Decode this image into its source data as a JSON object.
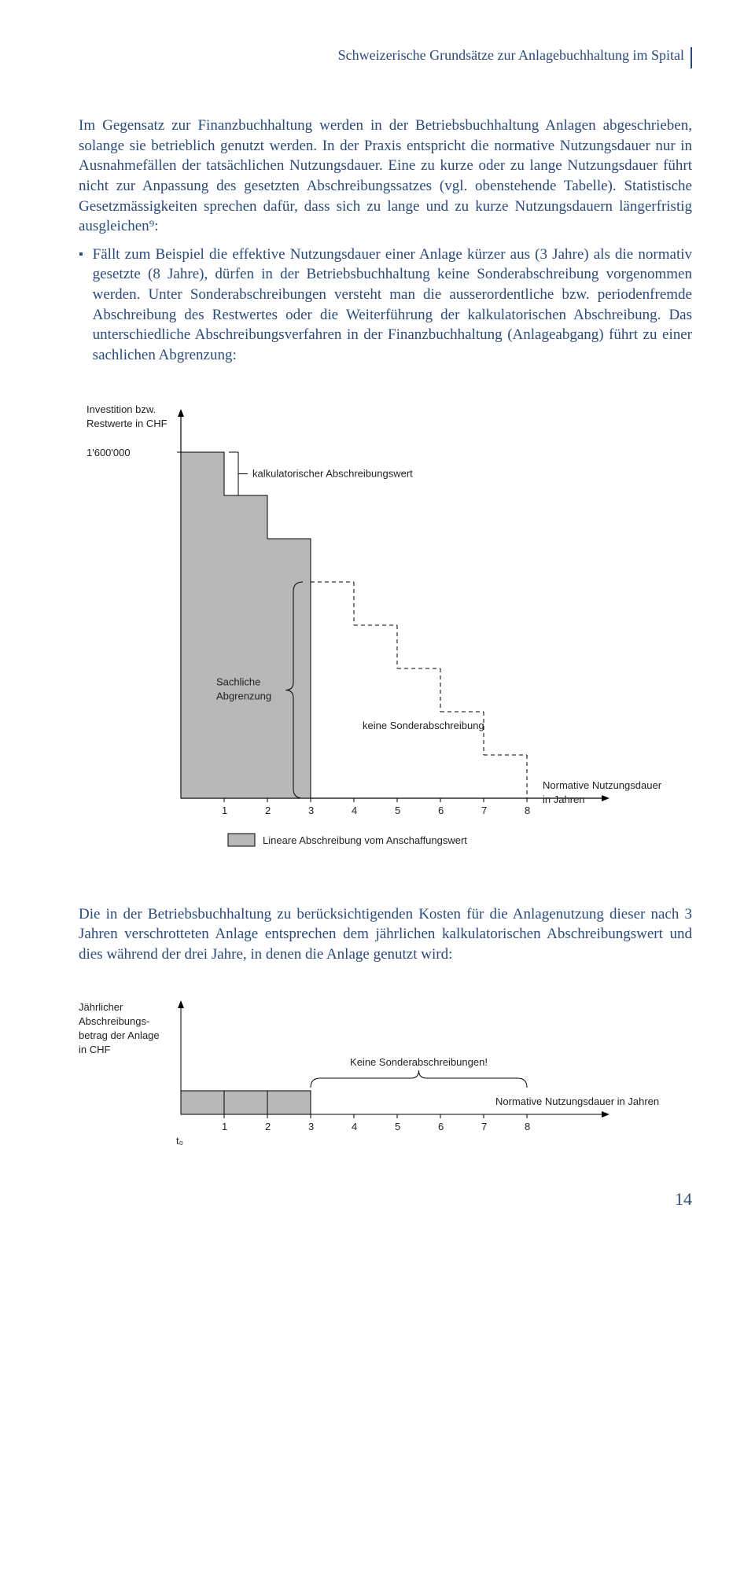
{
  "header": {
    "title": "Schweizerische Grundsätze zur Anlagebuchhaltung im Spital"
  },
  "para1": "Im Gegensatz zur Finanzbuchhaltung werden in der Betriebsbuchhaltung Anlagen abgeschrieben, solange sie betrieblich genutzt werden. In der Praxis entspricht die normative Nutzungsdauer nur in Ausnahmefällen der tatsächlichen Nutzungsdauer. Eine zu kurze oder zu lange Nutzungsdauer führt nicht zur Anpassung des gesetzten Abschreibungssatzes (vgl. obenstehende Tabelle). Statistische Gesetzmässigkeiten sprechen dafür, dass sich zu lange und zu kurze Nutzungsdauern längerfristig ausgleichen⁹:",
  "bullet1": "Fällt zum Beispiel die effektive Nutzungsdauer einer Anlage kürzer aus (3 Jahre) als die normativ gesetzte (8 Jahre), dürfen in der Betriebsbuchhaltung keine Sonderabschreibung vorgenommen werden. Unter Sonderabschreibungen versteht man die ausserordentliche bzw. periodenfremde Abschreibung des Restwertes oder die Weiterführung der kalkulatorischen Abschreibung. Das unterschiedliche Abschreibungsverfahren in der Finanzbuchhaltung (Anlageabgang) führt zu einer sachlichen Abgrenzung:",
  "chart1": {
    "type": "step-chart",
    "y_label_line1": "Investition bzw.",
    "y_label_line2": "Restwerte in CHF",
    "y_tick": "1'600'000",
    "annotation_kalk": "kalkulatorischer Abschreibungswert",
    "annotation_sachliche1": "Sachliche",
    "annotation_sachliche2": "Abgrenzung",
    "annotation_keine": "keine Sonderabschreibung",
    "x_label_line1": "Normative Nutzungsdauer",
    "x_label_line2": "in Jahren",
    "x_ticks": [
      "1",
      "2",
      "3",
      "4",
      "5",
      "6",
      "7",
      "8"
    ],
    "legend": "Lineare Abschreibung vom Anschaffungswert",
    "steps": 8,
    "solid_steps": 3,
    "fill_color": "#b8b8b8",
    "stroke_color": "#000000",
    "dash_color": "#000000",
    "bg": "#ffffff",
    "font_size": 13
  },
  "para2": "Die in der Betriebsbuchhaltung zu berücksichtigenden Kosten für die Anlagenutzung dieser nach 3 Jahren verschrotteten Anlage entsprechen dem jährlichen kalkulatorischen Abschreibungswert und dies während der drei Jahre, in denen die Anlage genutzt wird:",
  "chart2": {
    "type": "bar-timeline",
    "y_label_1": "Jährlicher",
    "y_label_2": "Abschreibungs-",
    "y_label_3": "betrag der Anlage",
    "y_label_4": "in CHF",
    "annotation": "Keine Sonderabschreibungen!",
    "x_label": "Normative Nutzungsdauer in Jahren",
    "x_ticks": [
      "1",
      "2",
      "3",
      "4",
      "5",
      "6",
      "7",
      "8"
    ],
    "t0": "t₀",
    "fill_color": "#b8b8b8",
    "stroke_color": "#000000",
    "font_size": 13
  },
  "page_number": "14"
}
